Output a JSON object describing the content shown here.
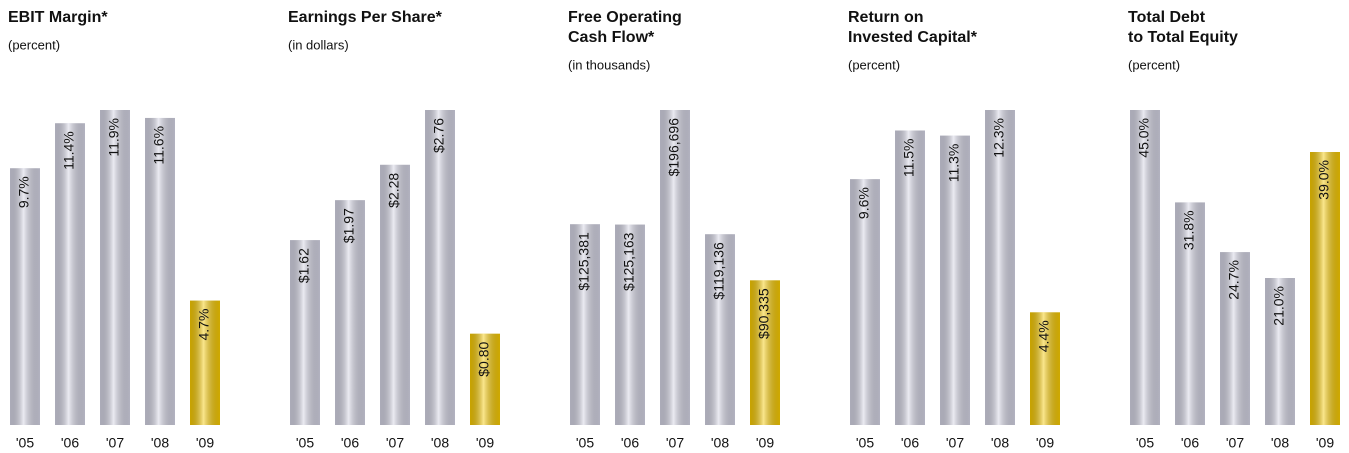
{
  "chart_data": [
    {
      "type": "bar",
      "title": [
        "EBIT Margin*"
      ],
      "subtitle": "(percent)",
      "categories": [
        "'05",
        "'06",
        "'07",
        "'08",
        "'09"
      ],
      "values": [
        9.7,
        11.4,
        11.9,
        11.6,
        4.7
      ],
      "value_labels": [
        "9.7%",
        "11.4%",
        "11.9%",
        "11.6%",
        "4.7%"
      ],
      "colors": [
        "#d2d2e2",
        "#d2d2e2",
        "#d2d2e2",
        "#d2d2e2",
        "#f5c800"
      ]
    },
    {
      "type": "bar",
      "title": [
        "Earnings Per Share*"
      ],
      "subtitle": "(in dollars)",
      "categories": [
        "'05",
        "'06",
        "'07",
        "'08",
        "'09"
      ],
      "values": [
        1.62,
        1.97,
        2.28,
        2.76,
        0.8
      ],
      "value_labels": [
        "$1.62",
        "$1.97",
        "$2.28",
        "$2.76",
        "$0.80"
      ],
      "colors": [
        "#d2d2e2",
        "#d2d2e2",
        "#d2d2e2",
        "#d2d2e2",
        "#f5c800"
      ]
    },
    {
      "type": "bar",
      "title": [
        "Free Operating",
        "Cash Flow*"
      ],
      "subtitle": "(in thousands)",
      "categories": [
        "'05",
        "'06",
        "'07",
        "'08",
        "'09"
      ],
      "values": [
        125381,
        125163,
        196696,
        119136,
        90335
      ],
      "value_labels": [
        "$125,381",
        "$125,163",
        "$196,696",
        "$119,136",
        "$90,335"
      ],
      "colors": [
        "#d2d2e2",
        "#d2d2e2",
        "#d2d2e2",
        "#d2d2e2",
        "#f5c800"
      ]
    },
    {
      "type": "bar",
      "title": [
        "Return on",
        "Invested Capital*"
      ],
      "subtitle": "(percent)",
      "categories": [
        "'05",
        "'06",
        "'07",
        "'08",
        "'09"
      ],
      "values": [
        9.6,
        11.5,
        11.3,
        12.3,
        4.4
      ],
      "value_labels": [
        "9.6%",
        "11.5%",
        "11.3%",
        "12.3%",
        "4.4%"
      ],
      "colors": [
        "#d2d2e2",
        "#d2d2e2",
        "#d2d2e2",
        "#d2d2e2",
        "#f5c800"
      ]
    },
    {
      "type": "bar",
      "title": [
        "Total Debt",
        "to Total Equity"
      ],
      "subtitle": "(percent)",
      "categories": [
        "'05",
        "'06",
        "'07",
        "'08",
        "'09"
      ],
      "values": [
        45.0,
        31.8,
        24.7,
        21.0,
        39.0
      ],
      "value_labels": [
        "45.0%",
        "31.8%",
        "24.7%",
        "21.0%",
        "39.0%"
      ],
      "colors": [
        "#d2d2e2",
        "#d2d2e2",
        "#d2d2e2",
        "#d2d2e2",
        "#f5c800"
      ]
    }
  ]
}
